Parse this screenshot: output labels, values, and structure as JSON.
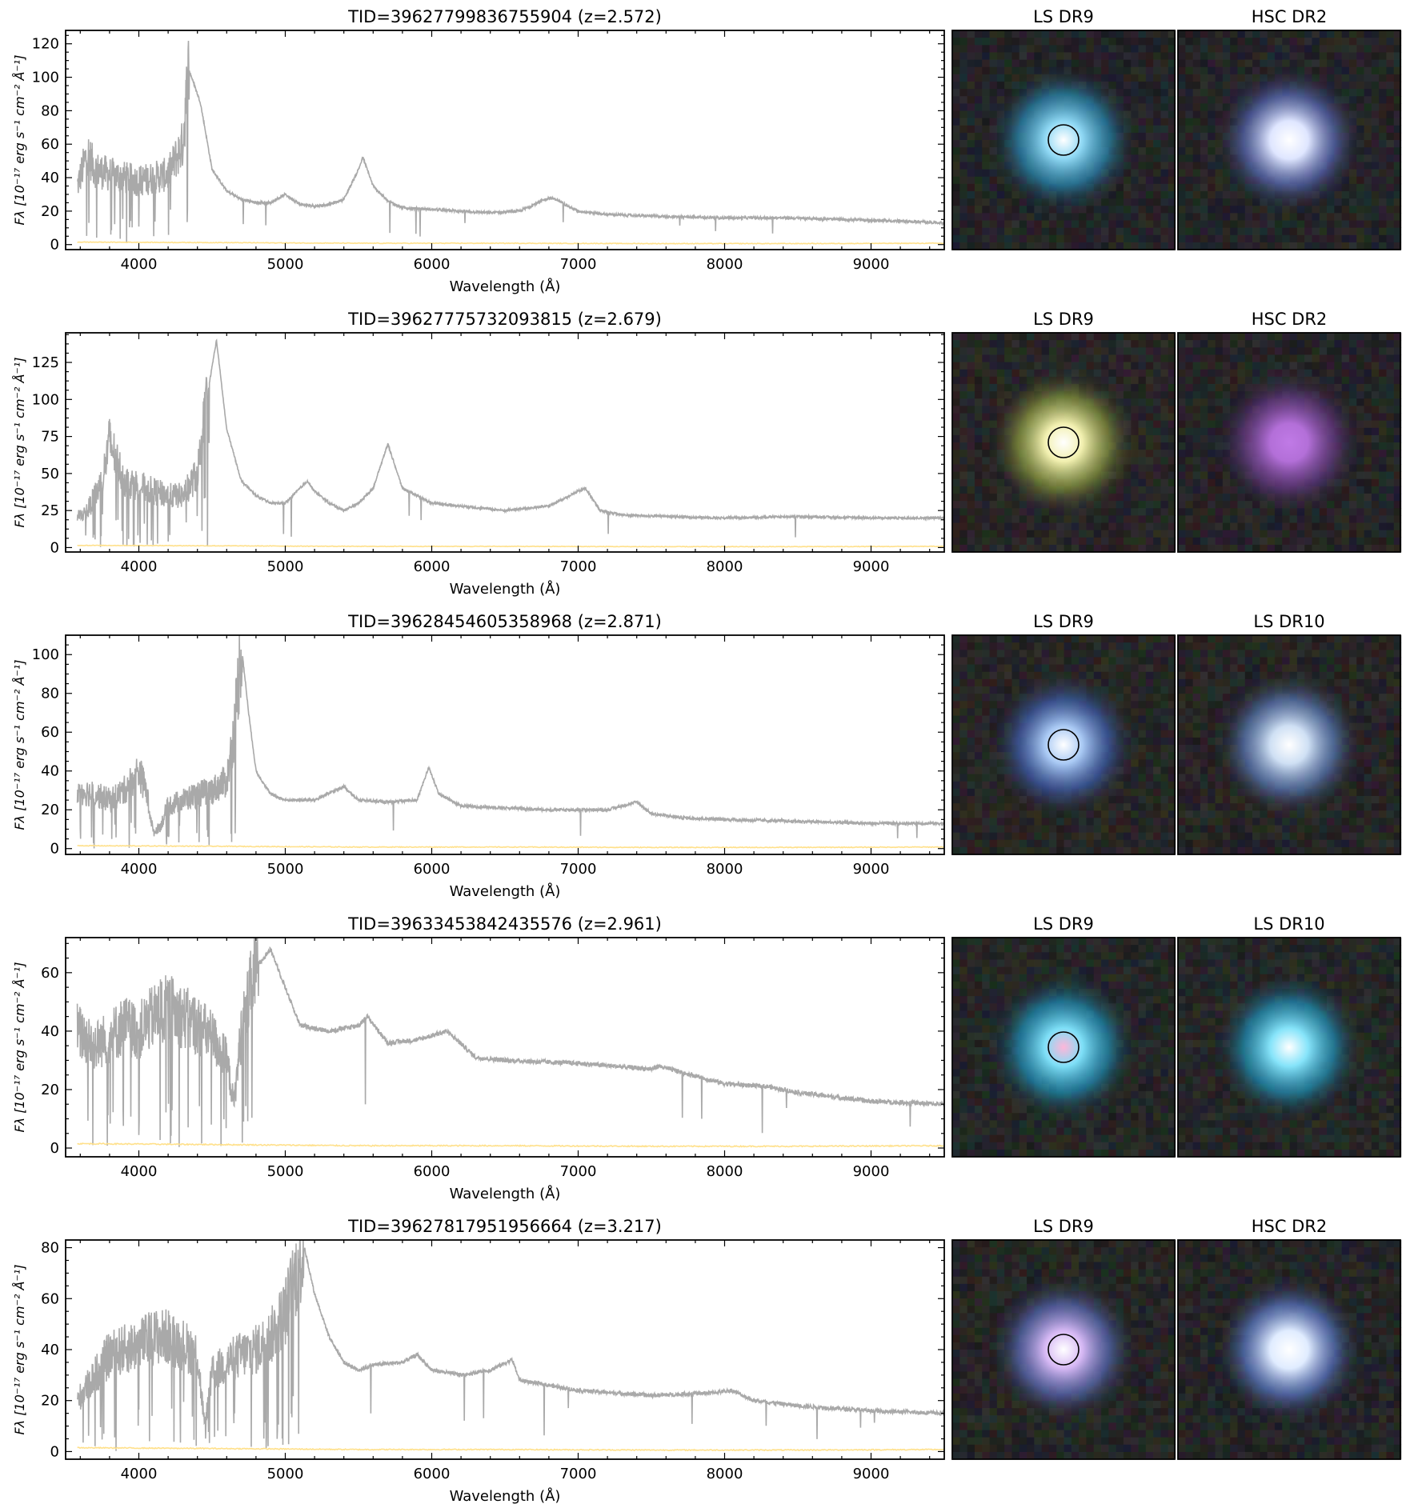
{
  "figure": {
    "xlabel": "Wavelength (Å)",
    "ylabel": "Fλ [10⁻¹⁷ erg s⁻¹ cm⁻² Å⁻¹]",
    "colors": {
      "flux": "#a9a9a9",
      "error": "#ffe08a",
      "frame": "#000000"
    }
  },
  "chart_data": [
    {
      "type": "line",
      "title": "TID=39627799836755904 (z=2.572)",
      "xlabel": "Wavelength (Å)",
      "ylabel": "Fλ [10⁻¹⁷ erg s⁻¹ cm⁻² Å⁻¹]",
      "xlim": [
        3500,
        9500
      ],
      "ylim": [
        -3,
        128
      ],
      "xticks": [
        4000,
        5000,
        6000,
        7000,
        8000,
        9000
      ],
      "yticks": [
        0,
        20,
        40,
        60,
        80,
        100,
        120
      ],
      "z": 2.572,
      "series": [
        {
          "x": [
            3580,
            3650,
            3700,
            3800,
            3900,
            4000,
            4100,
            4200,
            4300,
            4340,
            4380,
            4420,
            4500,
            4600,
            4700,
            4800,
            4900,
            5000,
            5100,
            5200,
            5300,
            5400,
            5500,
            5530,
            5600,
            5700,
            5800,
            6000,
            6200,
            6400,
            6600,
            6800,
            6850,
            6950,
            7000,
            7200,
            7500,
            8000,
            8400,
            8800,
            9200,
            9500
          ],
          "y": [
            35,
            55,
            45,
            42,
            40,
            38,
            40,
            42,
            60,
            105,
            95,
            85,
            45,
            32,
            27,
            25,
            25,
            30,
            24,
            23,
            24,
            27,
            45,
            52,
            35,
            26,
            22,
            21,
            20,
            19,
            20,
            28,
            27,
            22,
            20,
            18,
            17,
            16,
            16,
            15,
            14,
            13
          ]
        },
        {
          "x": [
            3580,
            4500,
            5500,
            6500,
            7500,
            8500,
            9500
          ],
          "y": [
            1.5,
            1.2,
            0.8,
            0.8,
            0.6,
            0.6,
            0.8
          ]
        }
      ],
      "images": [
        {
          "label": "LS DR9",
          "circle": true,
          "core": "#ffffff",
          "mid": "#8fd8f4",
          "halo": "#2a8bb5",
          "bg": "#1c2024"
        },
        {
          "label": "HSC DR2",
          "circle": false,
          "core": "#ffffff",
          "mid": "#dfe6ff",
          "halo": "#5a6bb8",
          "bg": "#1e1f24"
        }
      ]
    },
    {
      "type": "line",
      "title": "TID=39627775732093815 (z=2.679)",
      "xlabel": "Wavelength (Å)",
      "ylabel": "Fλ [10⁻¹⁷ erg s⁻¹ cm⁻² Å⁻¹]",
      "xlim": [
        3500,
        9500
      ],
      "ylim": [
        -3,
        145
      ],
      "xticks": [
        4000,
        5000,
        6000,
        7000,
        8000,
        9000
      ],
      "yticks": [
        0,
        25,
        50,
        75,
        100,
        125
      ],
      "z": 2.679,
      "series": [
        {
          "x": [
            3580,
            3650,
            3750,
            3800,
            3900,
            4000,
            4100,
            4200,
            4300,
            4400,
            4480,
            4530,
            4600,
            4700,
            4800,
            4900,
            5000,
            5100,
            5150,
            5200,
            5300,
            5400,
            5500,
            5600,
            5700,
            5800,
            6000,
            6200,
            6500,
            6800,
            7000,
            7050,
            7150,
            7300,
            7600,
            8000,
            8500,
            9000,
            9500
          ],
          "y": [
            20,
            25,
            45,
            72,
            45,
            42,
            38,
            35,
            35,
            50,
            110,
            140,
            80,
            45,
            35,
            30,
            30,
            40,
            45,
            38,
            30,
            25,
            30,
            40,
            70,
            40,
            30,
            28,
            25,
            28,
            38,
            40,
            25,
            22,
            21,
            20,
            21,
            20,
            20
          ]
        },
        {
          "x": [
            3580,
            4500,
            5500,
            6500,
            7500,
            8500,
            9500
          ],
          "y": [
            1.5,
            1.2,
            0.8,
            0.8,
            0.6,
            0.6,
            0.8
          ]
        }
      ],
      "images": [
        {
          "label": "LS DR9",
          "circle": true,
          "core": "#ffffff",
          "mid": "#f2f0b0",
          "halo": "#8a9a40",
          "bg": "#242322"
        },
        {
          "label": "HSC DR2",
          "circle": false,
          "core": "#c07ae6",
          "mid": "#b36fd8",
          "halo": "#6a3c8a",
          "bg": "#1f1e22"
        }
      ]
    },
    {
      "type": "line",
      "title": "TID=39628454605358968 (z=2.871)",
      "xlabel": "Wavelength (Å)",
      "ylabel": "Fλ [10⁻¹⁷ erg s⁻¹ cm⁻² Å⁻¹]",
      "xlim": [
        3500,
        9500
      ],
      "ylim": [
        -3,
        110
      ],
      "xticks": [
        4000,
        5000,
        6000,
        7000,
        8000,
        9000
      ],
      "yticks": [
        0,
        20,
        40,
        60,
        80,
        100
      ],
      "z": 2.871,
      "series": [
        {
          "x": [
            3580,
            3700,
            3800,
            3900,
            4000,
            4050,
            4100,
            4150,
            4200,
            4300,
            4400,
            4500,
            4600,
            4650,
            4700,
            4750,
            4800,
            4900,
            5000,
            5200,
            5400,
            5500,
            5700,
            5900,
            5980,
            6050,
            6200,
            6500,
            6800,
            7000,
            7200,
            7400,
            7500,
            7700,
            8000,
            8500,
            9000,
            9500
          ],
          "y": [
            30,
            28,
            25,
            30,
            40,
            30,
            8,
            12,
            22,
            25,
            28,
            30,
            35,
            60,
            105,
            70,
            40,
            28,
            25,
            25,
            32,
            25,
            24,
            25,
            42,
            28,
            22,
            21,
            20,
            20,
            20,
            24,
            18,
            16,
            15,
            14,
            13,
            13
          ]
        },
        {
          "x": [
            3580,
            4500,
            5500,
            6500,
            7500,
            8500,
            9500
          ],
          "y": [
            1.5,
            1.2,
            0.8,
            0.8,
            0.6,
            0.6,
            0.8
          ]
        }
      ],
      "images": [
        {
          "label": "LS DR9",
          "circle": true,
          "core": "#ffffff",
          "mid": "#a9c9f4",
          "halo": "#3e5fb0",
          "bg": "#24221f"
        },
        {
          "label": "LS DR10",
          "circle": false,
          "core": "#ffffff",
          "mid": "#cfe0f4",
          "halo": "#5a7ab8",
          "bg": "#23211f"
        }
      ]
    },
    {
      "type": "line",
      "title": "TID=39633453842435576 (z=2.961)",
      "xlabel": "Wavelength (Å)",
      "ylabel": "Fλ [10⁻¹⁷ erg s⁻¹ cm⁻² Å⁻¹]",
      "xlim": [
        3500,
        9500
      ],
      "ylim": [
        -3,
        72
      ],
      "xticks": [
        4000,
        5000,
        6000,
        7000,
        8000,
        9000
      ],
      "yticks": [
        0,
        20,
        40,
        60
      ],
      "z": 2.961,
      "series": [
        {
          "x": [
            3580,
            3700,
            3800,
            3900,
            4000,
            4100,
            4200,
            4300,
            4400,
            4500,
            4600,
            4650,
            4700,
            4800,
            4900,
            5000,
            5100,
            5300,
            5500,
            5560,
            5700,
            5900,
            6100,
            6150,
            6300,
            6500,
            7000,
            7500,
            7550,
            8000,
            8300,
            8500,
            9000,
            9500
          ],
          "y": [
            40,
            35,
            38,
            42,
            40,
            45,
            48,
            45,
            42,
            38,
            30,
            15,
            40,
            62,
            68,
            55,
            42,
            40,
            42,
            45,
            36,
            37,
            40,
            38,
            31,
            30,
            29,
            27,
            28,
            22,
            21,
            19,
            16,
            15
          ]
        },
        {
          "x": [
            3580,
            4500,
            5500,
            6500,
            7500,
            8500,
            9500
          ],
          "y": [
            1.5,
            1.2,
            0.8,
            0.8,
            0.6,
            0.6,
            0.8
          ]
        }
      ],
      "images": [
        {
          "label": "LS DR9",
          "circle": true,
          "core": "#ffb6d9",
          "mid": "#7fe0f8",
          "halo": "#1f8fb8",
          "bg": "#1e2423"
        },
        {
          "label": "LS DR10",
          "circle": false,
          "core": "#ffffff",
          "mid": "#86e4fa",
          "halo": "#2192ba",
          "bg": "#1f2422"
        }
      ]
    },
    {
      "type": "line",
      "title": "TID=39627817951956664 (z=3.217)",
      "xlabel": "Wavelength (Å)",
      "ylabel": "Fλ [10⁻¹⁷ erg s⁻¹ cm⁻² Å⁻¹]",
      "xlim": [
        3500,
        9500
      ],
      "ylim": [
        -3,
        83
      ],
      "xticks": [
        4000,
        5000,
        6000,
        7000,
        8000,
        9000
      ],
      "yticks": [
        0,
        20,
        40,
        60,
        80
      ],
      "z": 3.217,
      "series": [
        {
          "x": [
            3580,
            3700,
            3800,
            3900,
            4000,
            4100,
            4200,
            4300,
            4400,
            4450,
            4500,
            4600,
            4700,
            4800,
            4900,
            5000,
            5100,
            5130,
            5200,
            5300,
            5400,
            5500,
            5600,
            5800,
            5900,
            6000,
            6200,
            6400,
            6550,
            6600,
            7000,
            7500,
            7900,
            8050,
            8200,
            8500,
            9000,
            9500
          ],
          "y": [
            20,
            30,
            38,
            40,
            42,
            45,
            45,
            42,
            38,
            10,
            30,
            35,
            38,
            40,
            45,
            55,
            75,
            80,
            62,
            45,
            35,
            32,
            34,
            35,
            38,
            32,
            30,
            32,
            36,
            28,
            24,
            22,
            23,
            24,
            20,
            18,
            16,
            15
          ]
        },
        {
          "x": [
            3580,
            4500,
            5500,
            6500,
            7500,
            8500,
            9500
          ],
          "y": [
            1.5,
            1.2,
            0.8,
            0.8,
            0.6,
            0.6,
            0.8
          ]
        }
      ],
      "images": [
        {
          "label": "LS DR9",
          "circle": true,
          "core": "#ffffff",
          "mid": "#d6b8f4",
          "halo": "#5a6ab8",
          "bg": "#1f2320"
        },
        {
          "label": "HSC DR2",
          "circle": false,
          "core": "#ffffff",
          "mid": "#e0ecff",
          "halo": "#5a78c8",
          "bg": "#1e1f22"
        }
      ]
    }
  ]
}
